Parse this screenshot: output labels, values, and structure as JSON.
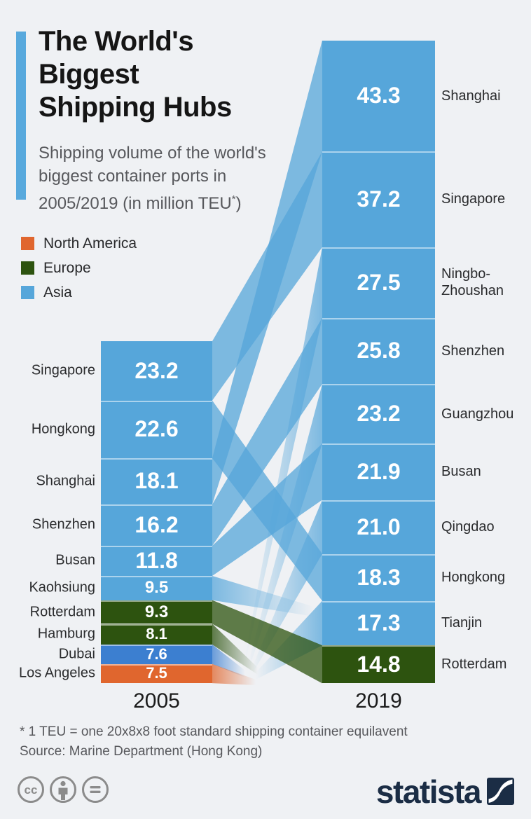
{
  "header": {
    "title_lines": [
      "The World's",
      "Biggest",
      "Shipping Hubs"
    ],
    "subtitle_lines": [
      "Shipping volume of the world's",
      "biggest container ports in"
    ],
    "subtitle_line3": {
      "prefix": "2005/2019 (in million TEU",
      "sup": "*",
      "suffix": ")"
    },
    "accent_color": "#58a9dd"
  },
  "legend": [
    {
      "label": "North America",
      "color": "#e0662e"
    },
    {
      "label": "Europe",
      "color": "#2d530f"
    },
    {
      "label": "Asia",
      "color": "#56a6da"
    }
  ],
  "chart_data": {
    "type": "slope-flow",
    "unit": "million TEU",
    "region_colors": {
      "Asia": "#56a6da",
      "Europe": "#2d530f",
      "North America": "#e0662e"
    },
    "columns": [
      {
        "year": "2005",
        "ports": [
          {
            "name": "Singapore",
            "value": 23.2,
            "region": "Asia"
          },
          {
            "name": "Hongkong",
            "value": 22.6,
            "region": "Asia"
          },
          {
            "name": "Shanghai",
            "value": 18.1,
            "region": "Asia"
          },
          {
            "name": "Shenzhen",
            "value": 16.2,
            "region": "Asia"
          },
          {
            "name": "Busan",
            "value": 11.8,
            "region": "Asia"
          },
          {
            "name": "Kaohsiung",
            "value": 9.5,
            "region": "Asia"
          },
          {
            "name": "Rotterdam",
            "value": 9.3,
            "region": "Europe"
          },
          {
            "name": "Hamburg",
            "value": 8.1,
            "region": "Europe"
          },
          {
            "name": "Dubai",
            "value": 7.6,
            "region": "Asia",
            "color": "#3c7fd0"
          },
          {
            "name": "Los Angeles",
            "value": 7.5,
            "region": "North America"
          }
        ]
      },
      {
        "year": "2019",
        "ports": [
          {
            "name": "Shanghai",
            "value": 43.3,
            "region": "Asia"
          },
          {
            "name": "Singapore",
            "value": 37.2,
            "region": "Asia"
          },
          {
            "name": "Ningbo-Zhoushan",
            "value": 27.5,
            "region": "Asia"
          },
          {
            "name": "Shenzhen",
            "value": 25.8,
            "region": "Asia"
          },
          {
            "name": "Guangzhou",
            "value": 23.2,
            "region": "Asia"
          },
          {
            "name": "Busan",
            "value": 21.9,
            "region": "Asia"
          },
          {
            "name": "Qingdao",
            "value": 21.0,
            "region": "Asia"
          },
          {
            "name": "Hongkong",
            "value": 18.3,
            "region": "Asia"
          },
          {
            "name": "Tianjin",
            "value": 17.3,
            "region": "Asia"
          },
          {
            "name": "Rotterdam",
            "value": 14.8,
            "region": "Europe"
          }
        ]
      }
    ]
  },
  "footer": {
    "footnote": "* 1 TEU = one 20x8x8 foot standard shipping container equilavent",
    "source": "Source: Marine Department (Hong Kong)",
    "brand": "statista",
    "brand_color": "#1b2d45",
    "license_icons": [
      "cc-icon",
      "attribution-icon",
      "no-derivatives-icon"
    ],
    "license_color": "#8b8b8b"
  }
}
